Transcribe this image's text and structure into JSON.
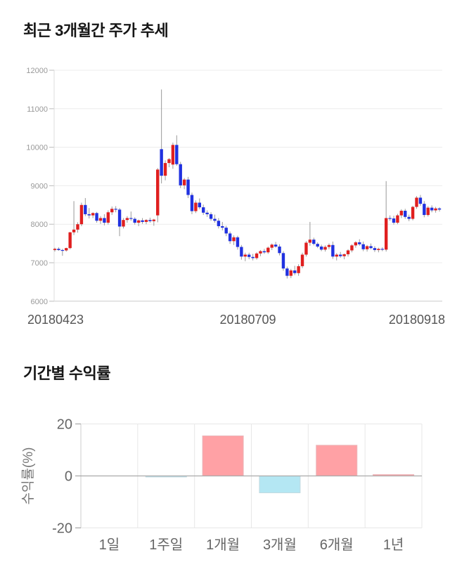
{
  "chart_data": [
    {
      "type": "candlestick",
      "title": "최근 3개월간 주가 추세",
      "ylim": [
        6000,
        12000
      ],
      "y_ticks": [
        12000,
        11000,
        10000,
        9000,
        8000,
        7000,
        6000
      ],
      "x_labels": [
        "20180423",
        "20180709",
        "20180918"
      ],
      "grid": "horizontal",
      "legend_position": "none",
      "up_color": "#e01f1f",
      "down_color": "#2031e0",
      "wick_color": "#999999",
      "candles_ohlc": [
        [
          7330,
          7390,
          7290,
          7360
        ],
        [
          7360,
          7400,
          7310,
          7330
        ],
        [
          7330,
          7360,
          7180,
          7320
        ],
        [
          7320,
          7390,
          7290,
          7380
        ],
        [
          7380,
          7800,
          7350,
          7790
        ],
        [
          7790,
          8600,
          7720,
          7860
        ],
        [
          7860,
          8050,
          7780,
          8000
        ],
        [
          8000,
          8560,
          7950,
          8500
        ],
        [
          8500,
          8680,
          8210,
          8260
        ],
        [
          8260,
          8420,
          8150,
          8230
        ],
        [
          8230,
          8310,
          8160,
          8290
        ],
        [
          8290,
          8320,
          8040,
          8090
        ],
        [
          8090,
          8210,
          8010,
          8160
        ],
        [
          8160,
          8260,
          7970,
          8040
        ],
        [
          8040,
          8360,
          7990,
          8310
        ],
        [
          8310,
          8460,
          8240,
          8400
        ],
        [
          8400,
          8470,
          8310,
          8380
        ],
        [
          8380,
          8420,
          7690,
          7940
        ],
        [
          7940,
          8160,
          7890,
          8110
        ],
        [
          8110,
          8210,
          8040,
          8160
        ],
        [
          8160,
          8330,
          8090,
          8140
        ],
        [
          8140,
          8180,
          7990,
          8040
        ],
        [
          8040,
          8120,
          7950,
          8100
        ],
        [
          8100,
          8160,
          8010,
          8060
        ],
        [
          8060,
          8130,
          8000,
          8110
        ],
        [
          8110,
          8170,
          8040,
          8080
        ],
        [
          8080,
          8140,
          7960,
          8120
        ],
        [
          8230,
          9460,
          8050,
          9420
        ],
        [
          9950,
          11500,
          9060,
          9260
        ],
        [
          9260,
          9660,
          9140,
          9590
        ],
        [
          9590,
          9720,
          9480,
          9690
        ],
        [
          9550,
          10120,
          9440,
          10060
        ],
        [
          10060,
          10310,
          9520,
          9560
        ],
        [
          9560,
          9620,
          8940,
          9010
        ],
        [
          9010,
          9200,
          8910,
          9160
        ],
        [
          9160,
          9230,
          8680,
          8760
        ],
        [
          8760,
          8820,
          8260,
          8340
        ],
        [
          8340,
          8620,
          8290,
          8560
        ],
        [
          8560,
          8670,
          8390,
          8440
        ],
        [
          8440,
          8510,
          8240,
          8300
        ],
        [
          8300,
          8360,
          8190,
          8260
        ],
        [
          8260,
          8310,
          8090,
          8140
        ],
        [
          8140,
          8250,
          8040,
          8090
        ],
        [
          8090,
          8160,
          7890,
          7950
        ],
        [
          7950,
          8060,
          7840,
          7910
        ],
        [
          7910,
          7960,
          7690,
          7760
        ],
        [
          7760,
          7810,
          7490,
          7560
        ],
        [
          7560,
          7710,
          7460,
          7660
        ],
        [
          7660,
          7700,
          7340,
          7410
        ],
        [
          7410,
          7460,
          7080,
          7160
        ],
        [
          7160,
          7260,
          7040,
          7210
        ],
        [
          7210,
          7260,
          7090,
          7150
        ],
        [
          7150,
          7230,
          7060,
          7120
        ],
        [
          7120,
          7270,
          7080,
          7240
        ],
        [
          7240,
          7330,
          7170,
          7300
        ],
        [
          7300,
          7360,
          7230,
          7270
        ],
        [
          7270,
          7420,
          7230,
          7390
        ],
        [
          7390,
          7500,
          7330,
          7470
        ],
        [
          7470,
          7540,
          7390,
          7420
        ],
        [
          7420,
          7480,
          7190,
          7250
        ],
        [
          7250,
          7300,
          6790,
          6850
        ],
        [
          6850,
          6900,
          6590,
          6660
        ],
        [
          6660,
          6840,
          6600,
          6800
        ],
        [
          6800,
          6920,
          6680,
          6730
        ],
        [
          6730,
          6960,
          6660,
          6910
        ],
        [
          6910,
          7260,
          6860,
          7210
        ],
        [
          7210,
          7560,
          7160,
          7520
        ],
        [
          7520,
          8060,
          7440,
          7600
        ],
        [
          7600,
          7650,
          7450,
          7490
        ],
        [
          7490,
          7530,
          7380,
          7420
        ],
        [
          7420,
          7470,
          7300,
          7340
        ],
        [
          7340,
          7450,
          7290,
          7410
        ],
        [
          7410,
          7500,
          7350,
          7460
        ],
        [
          7460,
          7550,
          7100,
          7160
        ],
        [
          7160,
          7250,
          7060,
          7210
        ],
        [
          7210,
          7280,
          7130,
          7170
        ],
        [
          7170,
          7240,
          7090,
          7220
        ],
        [
          7220,
          7350,
          7160,
          7320
        ],
        [
          7320,
          7480,
          7270,
          7450
        ],
        [
          7450,
          7560,
          7390,
          7530
        ],
        [
          7530,
          7610,
          7440,
          7480
        ],
        [
          7480,
          7550,
          7300,
          7350
        ],
        [
          7350,
          7460,
          7290,
          7430
        ],
        [
          7430,
          7500,
          7350,
          7380
        ],
        [
          7380,
          7430,
          7280,
          7330
        ],
        [
          7330,
          7390,
          7270,
          7360
        ],
        [
          7360,
          7400,
          7300,
          7340
        ],
        [
          7340,
          9120,
          7290,
          8160
        ],
        [
          8160,
          8230,
          8090,
          8150
        ],
        [
          8150,
          8220,
          7990,
          8040
        ],
        [
          8040,
          8270,
          8000,
          8230
        ],
        [
          8230,
          8390,
          8160,
          8350
        ],
        [
          8350,
          8400,
          8140,
          8190
        ],
        [
          8190,
          8250,
          8080,
          8140
        ],
        [
          8140,
          8480,
          8100,
          8450
        ],
        [
          8450,
          8730,
          8400,
          8690
        ],
        [
          8690,
          8760,
          8480,
          8530
        ],
        [
          8530,
          8600,
          8180,
          8240
        ],
        [
          8240,
          8470,
          8200,
          8430
        ],
        [
          8430,
          8490,
          8310,
          8360
        ],
        [
          8360,
          8450,
          8300,
          8410
        ],
        [
          8410,
          8440,
          8330,
          8380
        ]
      ]
    },
    {
      "type": "bar",
      "title": "기간별 수익률",
      "categories": [
        "1일",
        "1주일",
        "1개월",
        "3개월",
        "6개월",
        "1년"
      ],
      "values": [
        0.0,
        -0.3,
        15.4,
        -6.5,
        11.8,
        0.5
      ],
      "xlabel": "",
      "ylabel": "수익률(%)",
      "y_ticks": [
        20,
        0,
        -20
      ],
      "ylim": [
        -20,
        20
      ],
      "grid": "vertical",
      "legend_position": "none",
      "positive_color": "#ffa1a5",
      "positive_border_color": "#eab4b8",
      "negative_color": "#b4e7f3",
      "negative_border_color": "#c3d9e0",
      "zero_line_color": "#aaaaaa"
    }
  ]
}
